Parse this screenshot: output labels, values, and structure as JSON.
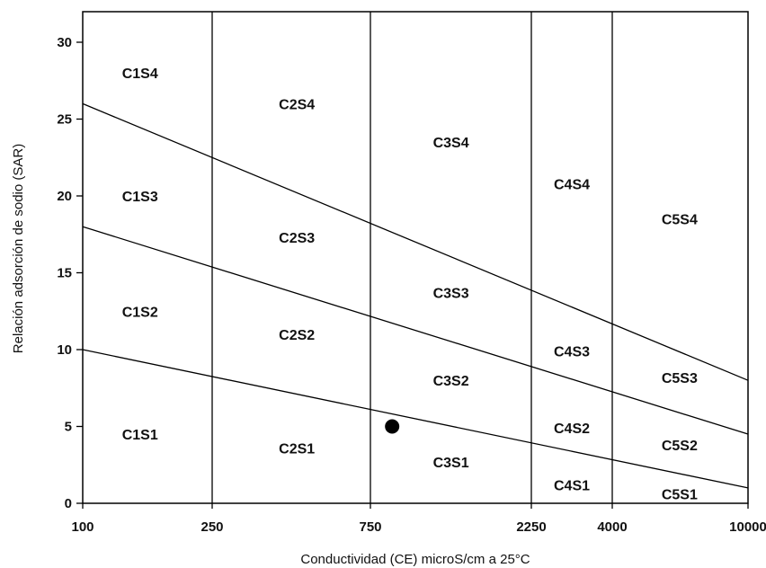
{
  "chart_data": {
    "type": "scatter",
    "title": "",
    "xlabel": "Conductividad (CE) microS/cm a 25°C",
    "ylabel": "Relación adsorción de sodio (SAR)",
    "x_ticks": [
      "100",
      "250",
      "750",
      "2250",
      "4000",
      "10000"
    ],
    "y_ticks": [
      "0",
      "5",
      "10",
      "15",
      "20",
      "25",
      "30"
    ],
    "ylim": [
      0,
      30
    ],
    "x_boundaries": [
      250,
      750,
      2250,
      4000
    ],
    "boundary_lines": [
      {
        "name": "S1/S2",
        "x": [
          100,
          10000
        ],
        "y": [
          10,
          1
        ]
      },
      {
        "name": "S2/S3",
        "x": [
          100,
          10000
        ],
        "y": [
          18,
          4.5
        ]
      },
      {
        "name": "S3/S4",
        "x": [
          100,
          10000
        ],
        "y": [
          26,
          8
        ]
      }
    ],
    "zones": [
      {
        "label": "C1S4",
        "x": 150,
        "y": 28
      },
      {
        "label": "C1S3",
        "x": 150,
        "y": 20
      },
      {
        "label": "C1S2",
        "x": 150,
        "y": 12.5
      },
      {
        "label": "C1S1",
        "x": 150,
        "y": 4.5
      },
      {
        "label": "C2S4",
        "x": 450,
        "y": 26
      },
      {
        "label": "C2S3",
        "x": 450,
        "y": 17.3
      },
      {
        "label": "C2S2",
        "x": 450,
        "y": 11
      },
      {
        "label": "C2S1",
        "x": 450,
        "y": 3.6
      },
      {
        "label": "C3S4",
        "x": 1300,
        "y": 23.5
      },
      {
        "label": "C3S3",
        "x": 1300,
        "y": 13.7
      },
      {
        "label": "C3S2",
        "x": 1300,
        "y": 8
      },
      {
        "label": "C3S1",
        "x": 1300,
        "y": 2.7
      },
      {
        "label": "C4S4",
        "x": 3000,
        "y": 20.8
      },
      {
        "label": "C4S3",
        "x": 3000,
        "y": 9.9
      },
      {
        "label": "C4S2",
        "x": 3000,
        "y": 4.9
      },
      {
        "label": "C4S1",
        "x": 3000,
        "y": 1.2
      },
      {
        "label": "C5S4",
        "x": 6300,
        "y": 18.5
      },
      {
        "label": "C5S3",
        "x": 6300,
        "y": 8.2
      },
      {
        "label": "C5S2",
        "x": 6300,
        "y": 3.8
      },
      {
        "label": "C5S1",
        "x": 6300,
        "y": 0.6
      }
    ],
    "points": [
      {
        "x": 870,
        "y": 5
      }
    ],
    "grid": false,
    "colors": {
      "line": "#000000",
      "point": "#000000",
      "text": "#111111"
    }
  }
}
